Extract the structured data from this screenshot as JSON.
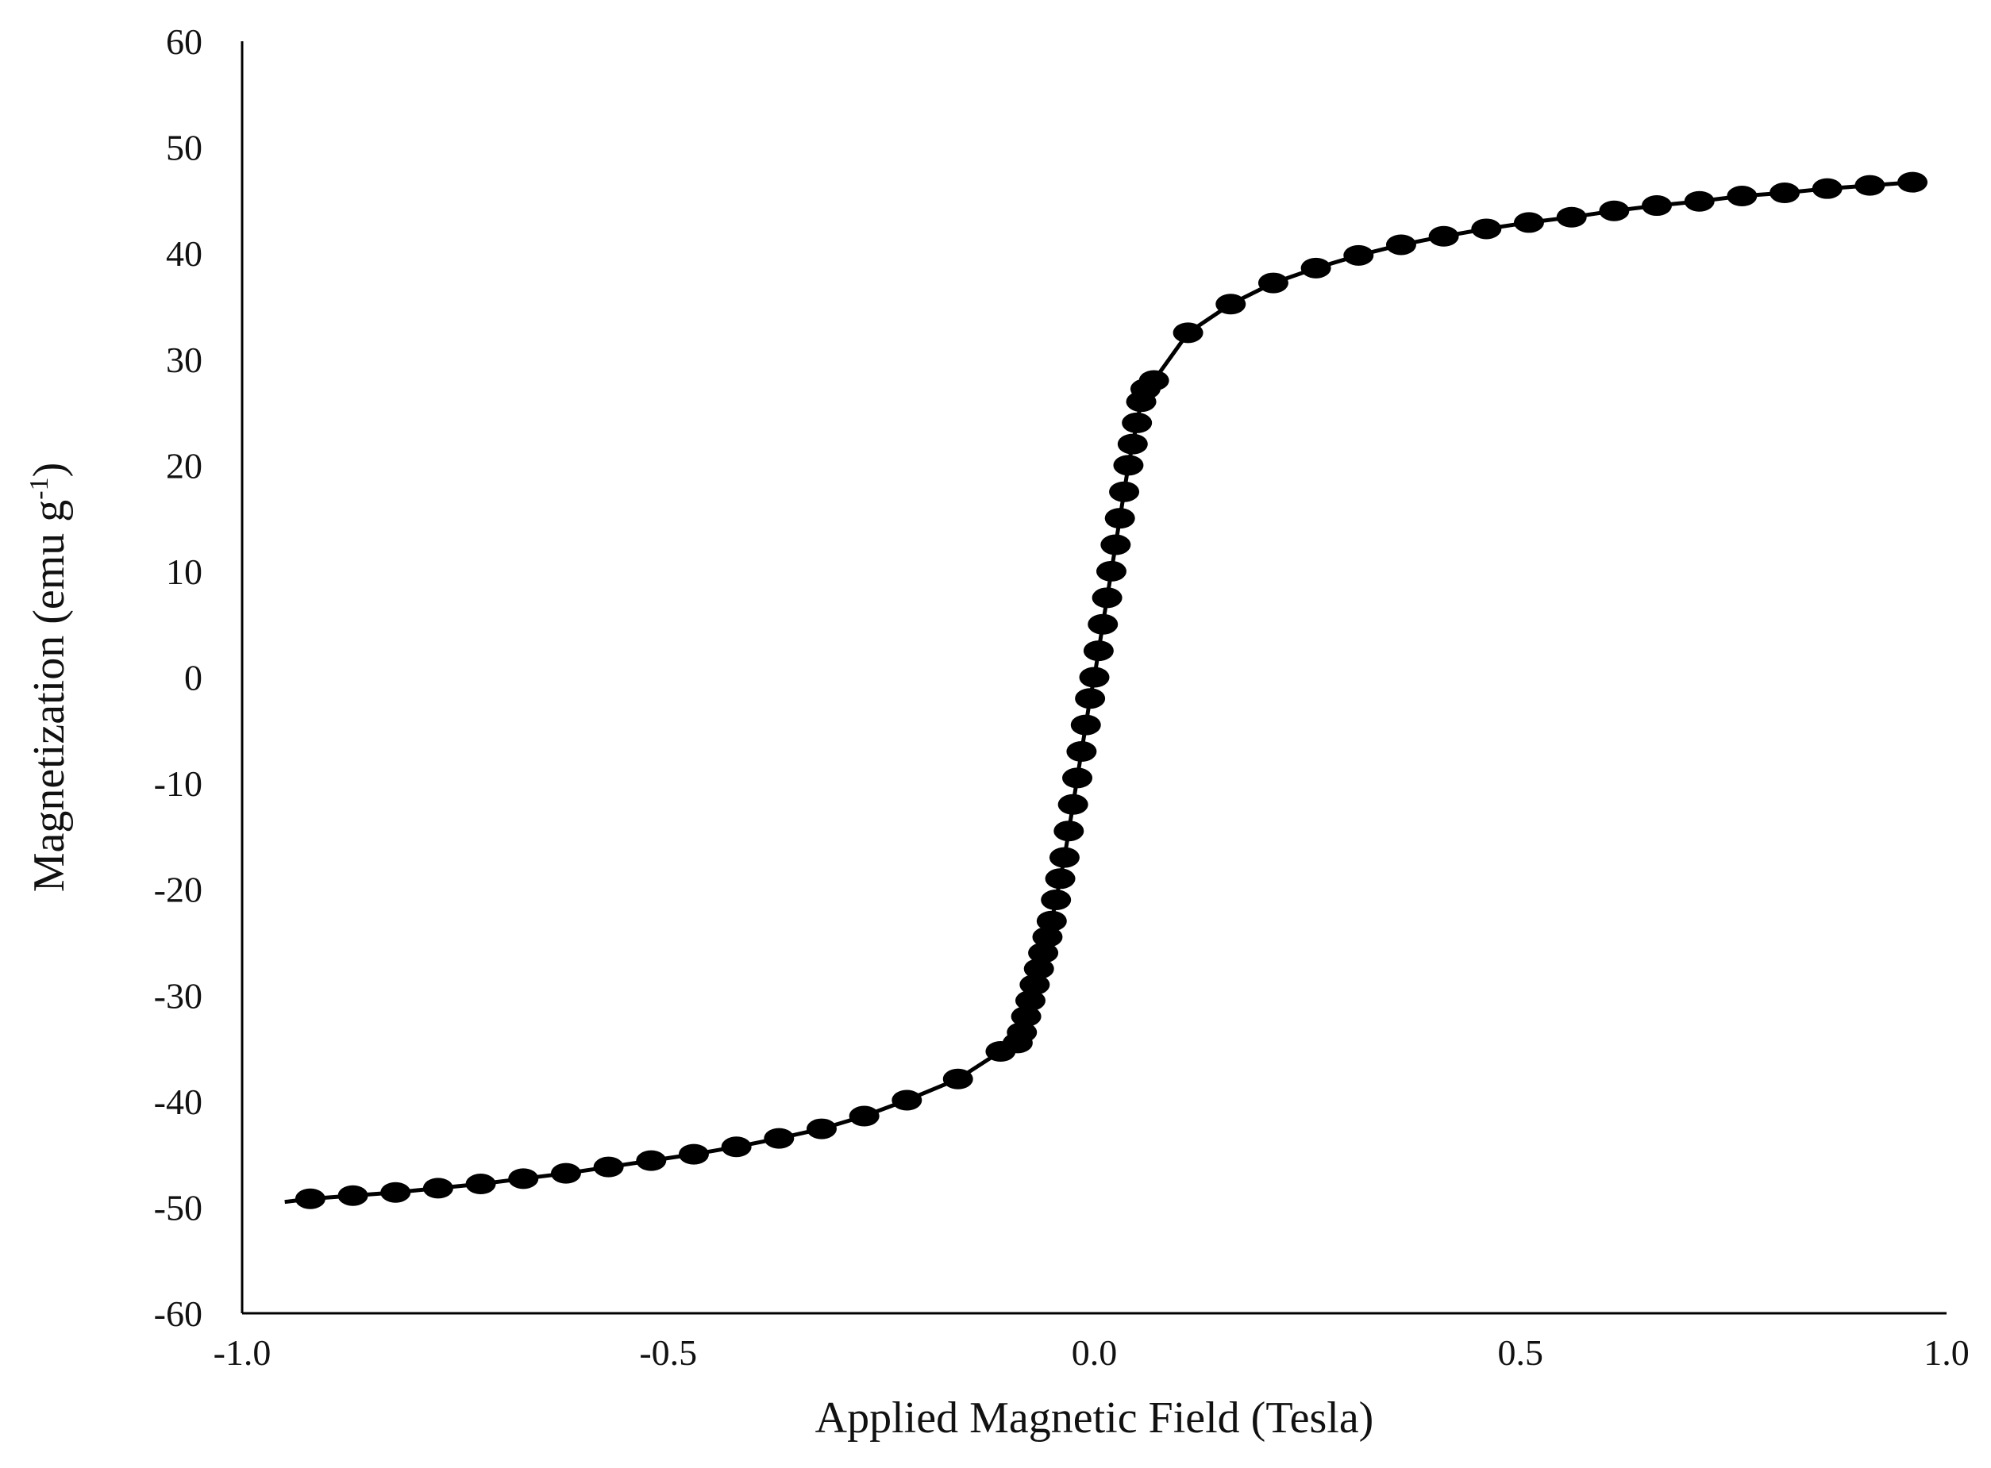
{
  "chart_data": {
    "type": "line",
    "title": "",
    "xlabel": "Applied Magnetic Field (Tesla)",
    "ylabel": {
      "main": "Magnetization (emu g",
      "superscript": "-1",
      "close": ")"
    },
    "xlim": [
      -1.0,
      1.0
    ],
    "ylim": [
      -60,
      60
    ],
    "xticks": [
      "-1.0",
      "-0.5",
      "0.0",
      "0.5",
      "1.0"
    ],
    "yticks": [
      "60",
      "50",
      "40",
      "30",
      "20",
      "10",
      "0",
      "-10",
      "-20",
      "-30",
      "-40",
      "-50",
      "-60"
    ],
    "grid": false,
    "legend": "none",
    "line_color": "#000000",
    "marker_color": "#000000",
    "series": [
      {
        "x": [
          -0.95,
          -0.92,
          -0.87,
          -0.82,
          -0.77,
          -0.72,
          -0.67,
          -0.62,
          -0.57,
          -0.52,
          -0.47,
          -0.42,
          -0.37,
          -0.32,
          -0.27,
          -0.22,
          -0.16,
          -0.11,
          -0.09,
          -0.085,
          -0.08,
          -0.075,
          -0.07,
          -0.065,
          -0.06,
          -0.055,
          -0.05,
          -0.045,
          -0.04,
          -0.035,
          -0.03,
          -0.025,
          -0.02,
          -0.015,
          -0.01,
          -0.005,
          0.0,
          0.005,
          0.01,
          0.015,
          0.02,
          0.025,
          0.03,
          0.035,
          0.04,
          0.045,
          0.05,
          0.055,
          0.06,
          0.07,
          0.11,
          0.16,
          0.21,
          0.26,
          0.31,
          0.36,
          0.41,
          0.46,
          0.51,
          0.56,
          0.61,
          0.66,
          0.71,
          0.76,
          0.81,
          0.86,
          0.91,
          0.96
        ],
        "y": [
          -49.5,
          -49.2,
          -48.9,
          -48.6,
          -48.2,
          -47.8,
          -47.3,
          -46.8,
          -46.2,
          -45.6,
          -45.0,
          -44.3,
          -43.5,
          -42.6,
          -41.4,
          -39.9,
          -37.9,
          -35.3,
          -34.5,
          -33.5,
          -32.0,
          -30.5,
          -29.0,
          -27.5,
          -26.0,
          -24.5,
          -23.0,
          -21.0,
          -19.0,
          -17.0,
          -14.5,
          -12.0,
          -9.5,
          -7.0,
          -4.5,
          -2.0,
          0.0,
          2.5,
          5.0,
          7.5,
          10.0,
          12.5,
          15.0,
          17.5,
          20.0,
          22.0,
          24.0,
          26.0,
          27.2,
          28.0,
          32.5,
          35.2,
          37.2,
          38.6,
          39.8,
          40.8,
          41.6,
          42.3,
          42.9,
          43.4,
          44.0,
          44.5,
          44.9,
          45.4,
          45.7,
          46.1,
          46.4,
          46.7
        ]
      }
    ]
  }
}
